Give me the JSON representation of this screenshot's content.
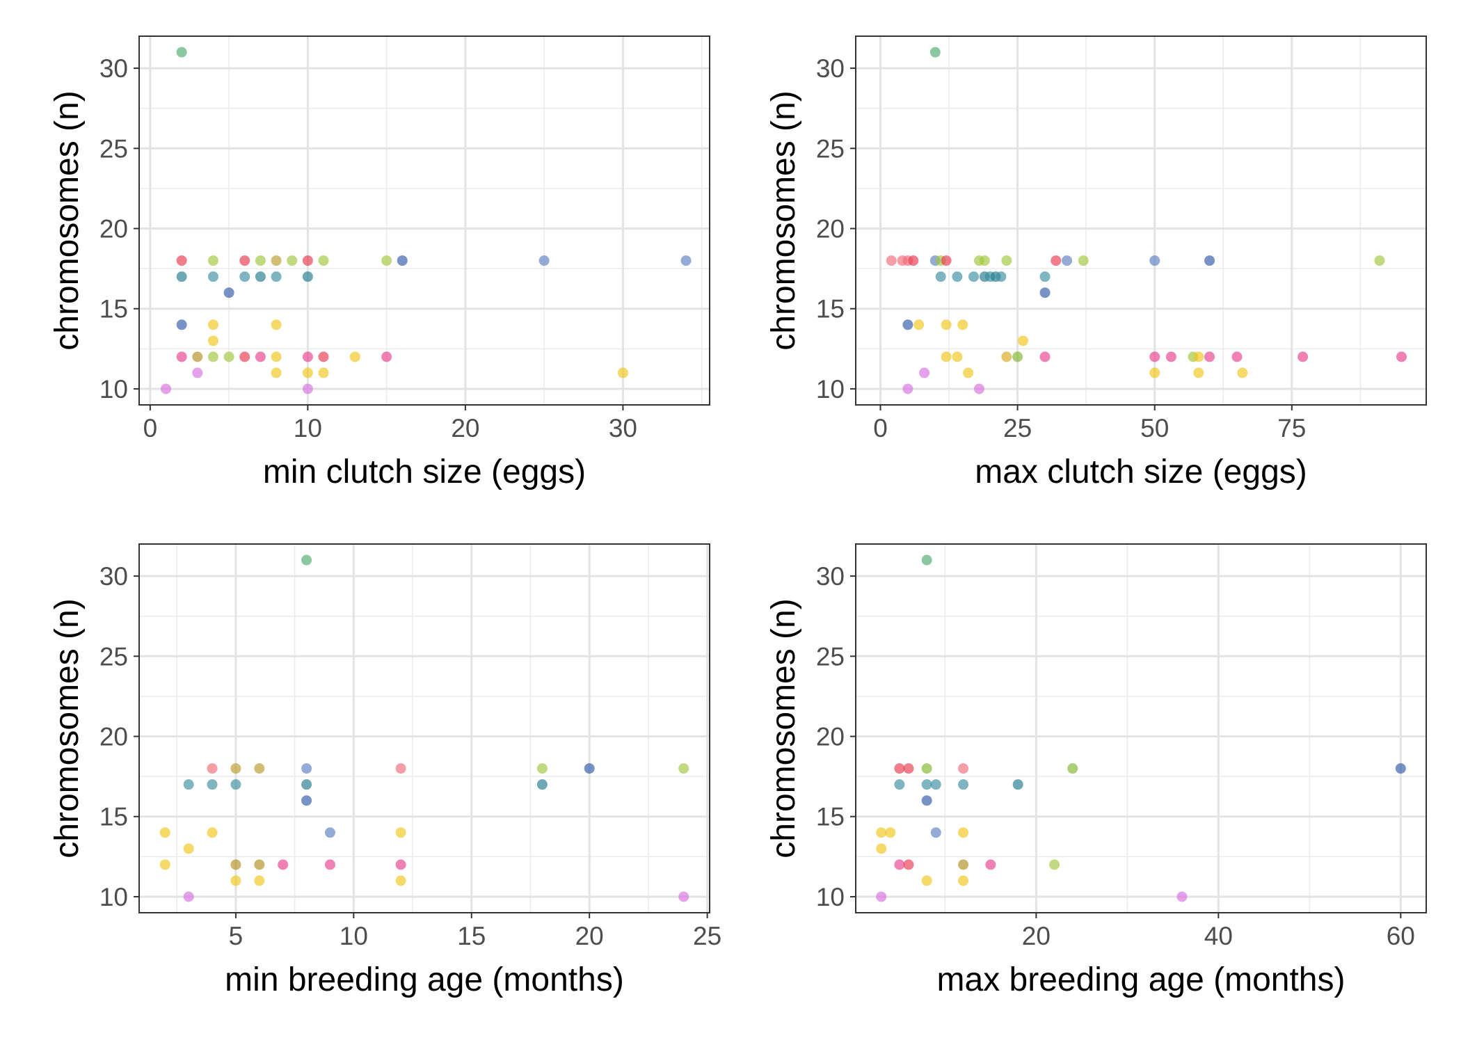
{
  "chart_data": [
    {
      "type": "scatter",
      "xlabel": "min clutch size (eggs)",
      "ylabel": "chromosomes (n)",
      "xlim": [
        -0.7,
        35.5
      ],
      "ylim": [
        9.0,
        32.0
      ],
      "xticks": [
        0,
        10,
        20,
        30
      ],
      "yticks": [
        10,
        15,
        20,
        25,
        30
      ],
      "grid": true,
      "points": [
        {
          "x": 2,
          "y": 31,
          "color": "#4daa6e"
        },
        {
          "x": 2,
          "y": 18,
          "color": "#e8384f"
        },
        {
          "x": 4,
          "y": 18,
          "color": "#9fc63b"
        },
        {
          "x": 6,
          "y": 18,
          "color": "#e8384f"
        },
        {
          "x": 7,
          "y": 18,
          "color": "#9fc63b"
        },
        {
          "x": 8,
          "y": 18,
          "color": "#b89a2a"
        },
        {
          "x": 9,
          "y": 18,
          "color": "#9fc63b"
        },
        {
          "x": 10,
          "y": 18,
          "color": "#e8384f"
        },
        {
          "x": 11,
          "y": 18,
          "color": "#9fc63b"
        },
        {
          "x": 15,
          "y": 18,
          "color": "#9fc63b"
        },
        {
          "x": 16,
          "y": 18,
          "color": "#2e57a6"
        },
        {
          "x": 25,
          "y": 18,
          "color": "#5b7fbe"
        },
        {
          "x": 34,
          "y": 18,
          "color": "#5b7fbe"
        },
        {
          "x": 2,
          "y": 17,
          "color": "#1f7a8c"
        },
        {
          "x": 4,
          "y": 17,
          "color": "#3a8ea0"
        },
        {
          "x": 6,
          "y": 17,
          "color": "#3a8ea0"
        },
        {
          "x": 7,
          "y": 17,
          "color": "#1f7a8c"
        },
        {
          "x": 8,
          "y": 17,
          "color": "#3a8ea0"
        },
        {
          "x": 10,
          "y": 17,
          "color": "#1f7a8c"
        },
        {
          "x": 5,
          "y": 16,
          "color": "#2e57a6"
        },
        {
          "x": 2,
          "y": 14,
          "color": "#2e57a6"
        },
        {
          "x": 4,
          "y": 14,
          "color": "#f0c419"
        },
        {
          "x": 8,
          "y": 14,
          "color": "#f0c419"
        },
        {
          "x": 4,
          "y": 13,
          "color": "#f0c419"
        },
        {
          "x": 2,
          "y": 12,
          "color": "#e83e8c"
        },
        {
          "x": 3,
          "y": 12,
          "color": "#b08f1f"
        },
        {
          "x": 4,
          "y": 12,
          "color": "#9fc63b"
        },
        {
          "x": 5,
          "y": 12,
          "color": "#9fc63b"
        },
        {
          "x": 6,
          "y": 12,
          "color": "#e8384f"
        },
        {
          "x": 7,
          "y": 12,
          "color": "#e83e8c"
        },
        {
          "x": 8,
          "y": 12,
          "color": "#f0c419"
        },
        {
          "x": 10,
          "y": 12,
          "color": "#e83e8c"
        },
        {
          "x": 11,
          "y": 12,
          "color": "#e8384f"
        },
        {
          "x": 13,
          "y": 12,
          "color": "#f0c419"
        },
        {
          "x": 15,
          "y": 12,
          "color": "#e83e8c"
        },
        {
          "x": 3,
          "y": 11,
          "color": "#d96ee0"
        },
        {
          "x": 8,
          "y": 11,
          "color": "#f0c419"
        },
        {
          "x": 10,
          "y": 11,
          "color": "#f0c419"
        },
        {
          "x": 11,
          "y": 11,
          "color": "#f0c419"
        },
        {
          "x": 30,
          "y": 11,
          "color": "#f0c419"
        },
        {
          "x": 1,
          "y": 10,
          "color": "#d96ee0"
        },
        {
          "x": 10,
          "y": 10,
          "color": "#d96ee0"
        }
      ]
    },
    {
      "type": "scatter",
      "xlabel": "max clutch size (eggs)",
      "ylabel": "chromosomes (n)",
      "xlim": [
        -4.5,
        99.5
      ],
      "ylim": [
        9.0,
        32.0
      ],
      "xticks": [
        0,
        25,
        50,
        75
      ],
      "yticks": [
        10,
        15,
        20,
        25,
        30
      ],
      "grid": true,
      "points": [
        {
          "x": 10,
          "y": 31,
          "color": "#4daa6e"
        },
        {
          "x": 2,
          "y": 18,
          "color": "#f06a78"
        },
        {
          "x": 4,
          "y": 18,
          "color": "#f06a78"
        },
        {
          "x": 5,
          "y": 18,
          "color": "#f06a78"
        },
        {
          "x": 6,
          "y": 18,
          "color": "#e8384f"
        },
        {
          "x": 10,
          "y": 18,
          "color": "#5b7fbe"
        },
        {
          "x": 11,
          "y": 18,
          "color": "#9fc63b"
        },
        {
          "x": 12,
          "y": 18,
          "color": "#e8384f"
        },
        {
          "x": 18,
          "y": 18,
          "color": "#9fc63b"
        },
        {
          "x": 19,
          "y": 18,
          "color": "#9fc63b"
        },
        {
          "x": 23,
          "y": 18,
          "color": "#9fc63b"
        },
        {
          "x": 32,
          "y": 18,
          "color": "#e8384f"
        },
        {
          "x": 34,
          "y": 18,
          "color": "#5b7fbe"
        },
        {
          "x": 37,
          "y": 18,
          "color": "#9fc63b"
        },
        {
          "x": 50,
          "y": 18,
          "color": "#5b7fbe"
        },
        {
          "x": 60,
          "y": 18,
          "color": "#2e57a6"
        },
        {
          "x": 91,
          "y": 18,
          "color": "#9fc63b"
        },
        {
          "x": 11,
          "y": 17,
          "color": "#3a8ea0"
        },
        {
          "x": 14,
          "y": 17,
          "color": "#3a8ea0"
        },
        {
          "x": 17,
          "y": 17,
          "color": "#3a8ea0"
        },
        {
          "x": 19,
          "y": 17,
          "color": "#1f7a8c"
        },
        {
          "x": 20,
          "y": 17,
          "color": "#3a8ea0"
        },
        {
          "x": 21,
          "y": 17,
          "color": "#1f7a8c"
        },
        {
          "x": 22,
          "y": 17,
          "color": "#3a8ea0"
        },
        {
          "x": 30,
          "y": 17,
          "color": "#3a8ea0"
        },
        {
          "x": 30,
          "y": 16,
          "color": "#2e57a6"
        },
        {
          "x": 5,
          "y": 14,
          "color": "#2e57a6"
        },
        {
          "x": 7,
          "y": 14,
          "color": "#f0c419"
        },
        {
          "x": 12,
          "y": 14,
          "color": "#f0c419"
        },
        {
          "x": 15,
          "y": 14,
          "color": "#f0c419"
        },
        {
          "x": 26,
          "y": 13,
          "color": "#f0c419"
        },
        {
          "x": 12,
          "y": 12,
          "color": "#f0c419"
        },
        {
          "x": 14,
          "y": 12,
          "color": "#f0c419"
        },
        {
          "x": 23,
          "y": 12,
          "color": "#d9a81c"
        },
        {
          "x": 25,
          "y": 12,
          "color": "#7fb52c"
        },
        {
          "x": 30,
          "y": 12,
          "color": "#e83e8c"
        },
        {
          "x": 50,
          "y": 12,
          "color": "#e83e8c"
        },
        {
          "x": 53,
          "y": 12,
          "color": "#e83e8c"
        },
        {
          "x": 57,
          "y": 12,
          "color": "#9fc63b"
        },
        {
          "x": 58,
          "y": 12,
          "color": "#f0c419"
        },
        {
          "x": 60,
          "y": 12,
          "color": "#e83e8c"
        },
        {
          "x": 65,
          "y": 12,
          "color": "#e83e8c"
        },
        {
          "x": 77,
          "y": 12,
          "color": "#e83e8c"
        },
        {
          "x": 95,
          "y": 12,
          "color": "#e83e8c"
        },
        {
          "x": 8,
          "y": 11,
          "color": "#d96ee0"
        },
        {
          "x": 16,
          "y": 11,
          "color": "#f0c419"
        },
        {
          "x": 50,
          "y": 11,
          "color": "#f0c419"
        },
        {
          "x": 58,
          "y": 11,
          "color": "#f0c419"
        },
        {
          "x": 66,
          "y": 11,
          "color": "#f0c419"
        },
        {
          "x": 5,
          "y": 10,
          "color": "#d96ee0"
        },
        {
          "x": 18,
          "y": 10,
          "color": "#d96ee0"
        }
      ]
    },
    {
      "type": "scatter",
      "xlabel": "min breeding age (months)",
      "ylabel": "chromosomes (n)",
      "xlim": [
        0.9,
        25.1
      ],
      "ylim": [
        9.0,
        32.0
      ],
      "xticks": [
        5,
        10,
        15,
        20,
        25
      ],
      "yticks": [
        10,
        15,
        20,
        25,
        30
      ],
      "grid": true,
      "points": [
        {
          "x": 8,
          "y": 31,
          "color": "#4daa6e"
        },
        {
          "x": 4,
          "y": 18,
          "color": "#f06a78"
        },
        {
          "x": 5,
          "y": 18,
          "color": "#b89a2a"
        },
        {
          "x": 6,
          "y": 18,
          "color": "#b89a2a"
        },
        {
          "x": 8,
          "y": 18,
          "color": "#5b7fbe"
        },
        {
          "x": 12,
          "y": 18,
          "color": "#f06a78"
        },
        {
          "x": 18,
          "y": 18,
          "color": "#9fc63b"
        },
        {
          "x": 20,
          "y": 18,
          "color": "#2e57a6"
        },
        {
          "x": 24,
          "y": 18,
          "color": "#9fc63b"
        },
        {
          "x": 3,
          "y": 17,
          "color": "#3a8ea0"
        },
        {
          "x": 4,
          "y": 17,
          "color": "#3a8ea0"
        },
        {
          "x": 5,
          "y": 17,
          "color": "#3a8ea0"
        },
        {
          "x": 8,
          "y": 17,
          "color": "#1f7a8c"
        },
        {
          "x": 18,
          "y": 17,
          "color": "#1f7a8c"
        },
        {
          "x": 8,
          "y": 16,
          "color": "#2e57a6"
        },
        {
          "x": 2,
          "y": 14,
          "color": "#f0c419"
        },
        {
          "x": 4,
          "y": 14,
          "color": "#f0c419"
        },
        {
          "x": 9,
          "y": 14,
          "color": "#5b7fbe"
        },
        {
          "x": 12,
          "y": 14,
          "color": "#f0c419"
        },
        {
          "x": 3,
          "y": 13,
          "color": "#f0c419"
        },
        {
          "x": 2,
          "y": 12,
          "color": "#f0c419"
        },
        {
          "x": 5,
          "y": 12,
          "color": "#b08f1f"
        },
        {
          "x": 6,
          "y": 12,
          "color": "#b08f1f"
        },
        {
          "x": 7,
          "y": 12,
          "color": "#e83e8c"
        },
        {
          "x": 9,
          "y": 12,
          "color": "#e83e8c"
        },
        {
          "x": 12,
          "y": 12,
          "color": "#e83e8c"
        },
        {
          "x": 5,
          "y": 11,
          "color": "#f0c419"
        },
        {
          "x": 6,
          "y": 11,
          "color": "#f0c419"
        },
        {
          "x": 12,
          "y": 11,
          "color": "#f0c419"
        },
        {
          "x": 3,
          "y": 10,
          "color": "#d96ee0"
        },
        {
          "x": 24,
          "y": 10,
          "color": "#d96ee0"
        }
      ]
    },
    {
      "type": "scatter",
      "xlabel": "max breeding age (months)",
      "ylabel": "chromosomes (n)",
      "xlim": [
        0.2,
        62.8
      ],
      "ylim": [
        9.0,
        32.0
      ],
      "xticks": [
        20,
        40,
        60
      ],
      "yticks": [
        10,
        15,
        20,
        25,
        30
      ],
      "grid": true,
      "points": [
        {
          "x": 8,
          "y": 31,
          "color": "#4daa6e"
        },
        {
          "x": 5,
          "y": 18,
          "color": "#e8384f"
        },
        {
          "x": 6,
          "y": 18,
          "color": "#e8384f"
        },
        {
          "x": 8,
          "y": 18,
          "color": "#7fb52c"
        },
        {
          "x": 12,
          "y": 18,
          "color": "#f06a78"
        },
        {
          "x": 24,
          "y": 18,
          "color": "#7fb52c"
        },
        {
          "x": 60,
          "y": 18,
          "color": "#2e57a6"
        },
        {
          "x": 5,
          "y": 17,
          "color": "#3a8ea0"
        },
        {
          "x": 8,
          "y": 17,
          "color": "#3a8ea0"
        },
        {
          "x": 9,
          "y": 17,
          "color": "#3a8ea0"
        },
        {
          "x": 12,
          "y": 17,
          "color": "#3a8ea0"
        },
        {
          "x": 18,
          "y": 17,
          "color": "#1f7a8c"
        },
        {
          "x": 8,
          "y": 16,
          "color": "#2e57a6"
        },
        {
          "x": 3,
          "y": 14,
          "color": "#f0c419"
        },
        {
          "x": 4,
          "y": 14,
          "color": "#f0c419"
        },
        {
          "x": 9,
          "y": 14,
          "color": "#5b7fbe"
        },
        {
          "x": 12,
          "y": 14,
          "color": "#f0c419"
        },
        {
          "x": 3,
          "y": 13,
          "color": "#f0c419"
        },
        {
          "x": 5,
          "y": 12,
          "color": "#e83e8c"
        },
        {
          "x": 6,
          "y": 12,
          "color": "#e8384f"
        },
        {
          "x": 12,
          "y": 12,
          "color": "#b08f1f"
        },
        {
          "x": 15,
          "y": 12,
          "color": "#e83e8c"
        },
        {
          "x": 22,
          "y": 12,
          "color": "#9fc63b"
        },
        {
          "x": 8,
          "y": 11,
          "color": "#f0c419"
        },
        {
          "x": 12,
          "y": 11,
          "color": "#f0c419"
        },
        {
          "x": 3,
          "y": 10,
          "color": "#d96ee0"
        },
        {
          "x": 36,
          "y": 10,
          "color": "#d96ee0"
        }
      ]
    }
  ]
}
